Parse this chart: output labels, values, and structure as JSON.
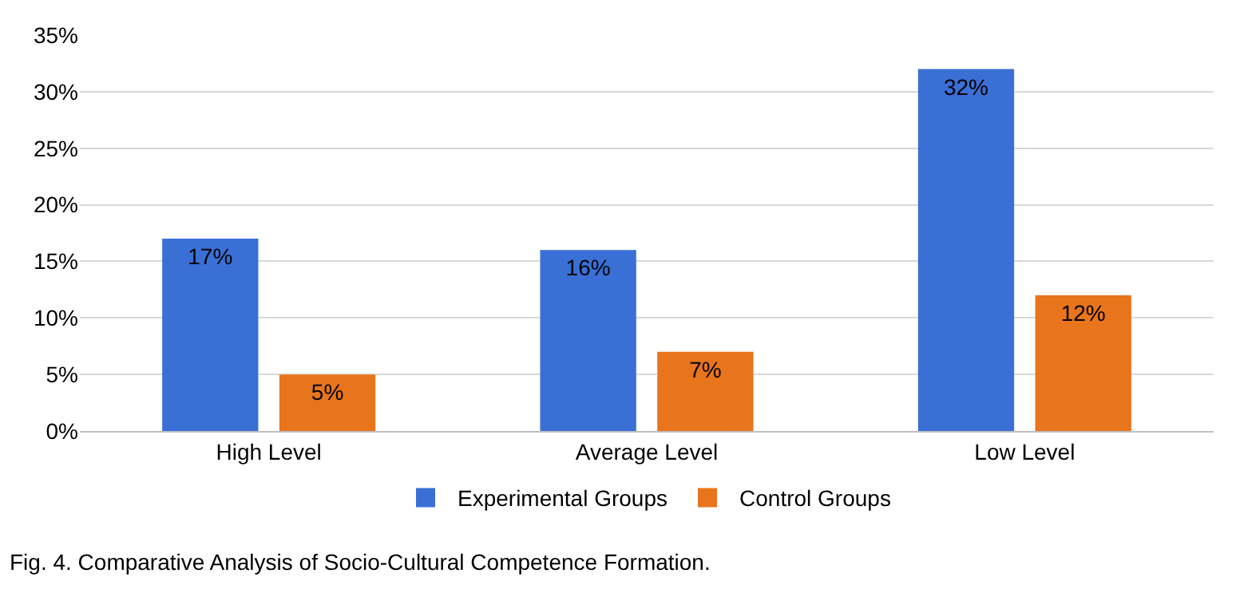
{
  "chart_data": {
    "type": "bar",
    "categories": [
      "High Level",
      "Average Level",
      "Low Level"
    ],
    "series": [
      {
        "name": "Experimental Groups",
        "color": "#3a6fd6",
        "values": [
          17,
          16,
          32
        ],
        "value_labels": [
          "17%",
          "16%",
          "32%"
        ]
      },
      {
        "name": "Control Groups",
        "color": "#e8741c",
        "values": [
          5,
          7,
          12
        ],
        "value_labels": [
          "5%",
          "7%",
          "12%"
        ]
      }
    ],
    "ylim": [
      0,
      35
    ],
    "yticks": [
      {
        "value": 0,
        "label": "0%"
      },
      {
        "value": 5,
        "label": "5%"
      },
      {
        "value": 10,
        "label": "10%"
      },
      {
        "value": 15,
        "label": "15%"
      },
      {
        "value": 20,
        "label": "20%"
      },
      {
        "value": 25,
        "label": "25%"
      },
      {
        "value": 30,
        "label": "30%"
      },
      {
        "value": 35,
        "label": "35%"
      }
    ],
    "grid": "y",
    "legend": "bottom",
    "annotations": [
      "Fig. 4. Comparative Analysis of Socio-Cultural Competence Formation."
    ]
  }
}
